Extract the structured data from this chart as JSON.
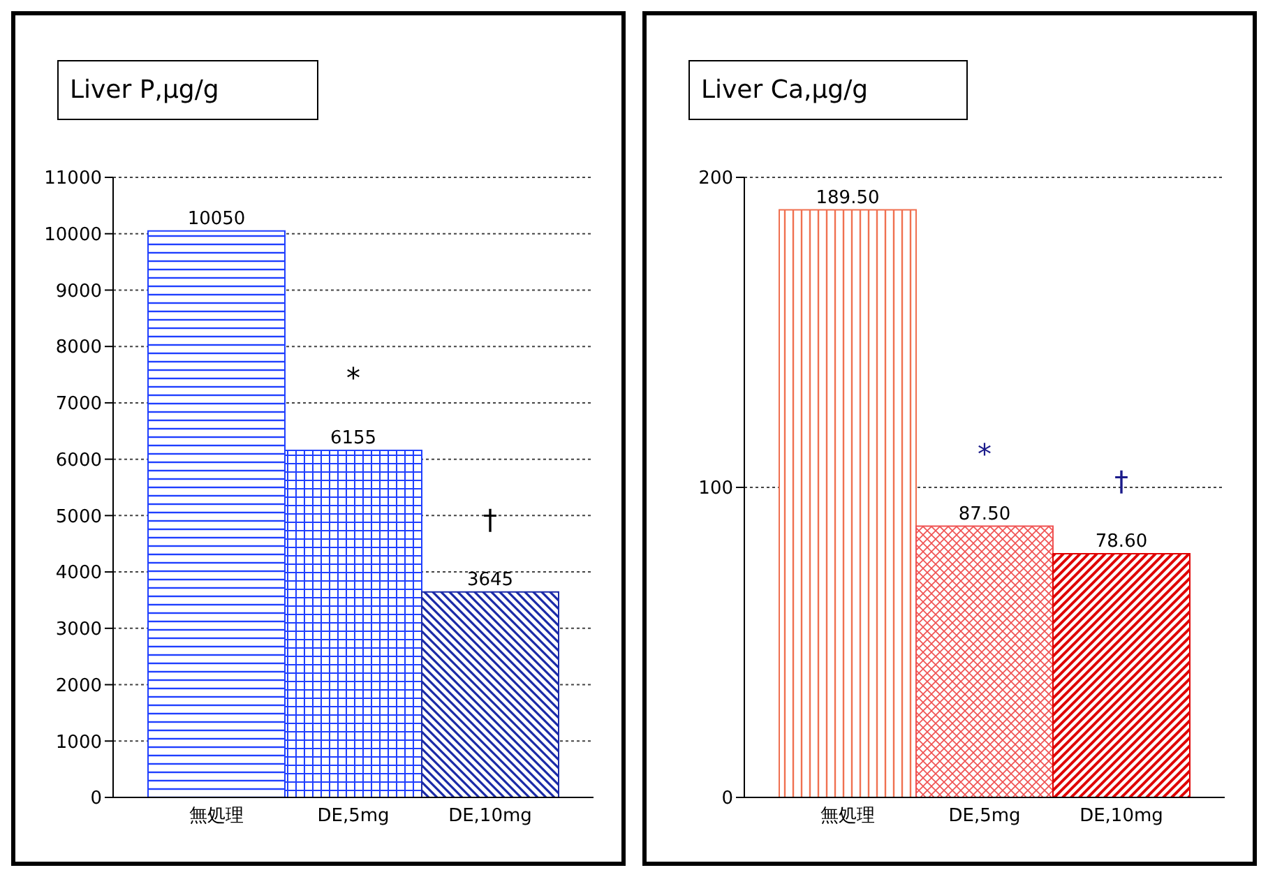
{
  "chart_data": [
    {
      "type": "bar",
      "title": "Liver P,μg/g",
      "categories": [
        "無処理",
        "DE,5mg",
        "DE,10mg"
      ],
      "values": [
        10050,
        6155,
        3645
      ],
      "colors": [
        "#1f3fff",
        "#1f3fff",
        "#1a2aa8"
      ],
      "ylim": [
        0,
        11000
      ],
      "yticks": [
        0,
        1000,
        2000,
        3000,
        4000,
        5000,
        6000,
        7000,
        8000,
        9000,
        10000,
        11000
      ],
      "grid": "y",
      "data_labels": true,
      "annotations": [
        "*",
        "†"
      ]
    },
    {
      "type": "bar",
      "title": "Liver Ca,μg/g",
      "categories": [
        "無処理",
        "DE,5mg",
        "DE,10mg"
      ],
      "values": [
        189.5,
        87.5,
        78.6
      ],
      "value_labels": [
        "189.50",
        "87.50",
        "78.60"
      ],
      "colors": [
        "#f07050",
        "#f05050",
        "#e00000"
      ],
      "ylim": [
        0,
        200
      ],
      "yticks": [
        0,
        100,
        200
      ],
      "grid": "y",
      "annotations": [
        "*",
        "†"
      ]
    }
  ]
}
